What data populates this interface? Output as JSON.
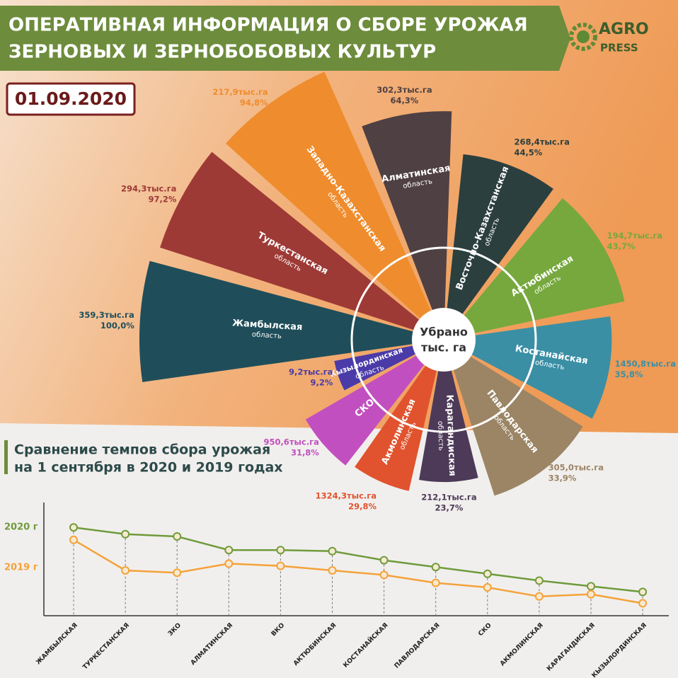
{
  "header": {
    "title_lines": [
      "ОПЕРАТИВНАЯ ИНФОРМАЦИЯ О СБОРЕ УРОЖАЯ",
      "ЗЕРНОВЫХ И ЗЕРНОБОБОВЫХ КУЛЬТУР"
    ],
    "logo": [
      "AGRO",
      "PRESS"
    ],
    "date": "01.09.2020"
  },
  "chart_data": [
    {
      "type": "polar-bar",
      "center_label": [
        "Убрано",
        "тыс. га"
      ],
      "categories": [
        "Жамбылская",
        "Туркестанская",
        "Западно-Казахстанская",
        "Алматинская",
        "Восточно-Казахстанская",
        "Актюбинская",
        "Костанайская",
        "Павлодарская",
        "Карагандиская",
        "Акмолинская",
        "СКО",
        "Кызылординская"
      ],
      "sublabels": [
        "область",
        "область",
        "область",
        "область",
        "область",
        "область",
        "область",
        "область",
        "область",
        "область",
        null,
        "область"
      ],
      "values": [
        100.0,
        97.2,
        94.8,
        64.3,
        44.5,
        43.7,
        35.8,
        33.9,
        23.7,
        29.8,
        31.8,
        9.2
      ],
      "value_labels": [
        "100,0%",
        "97,2%",
        "94,8%",
        "64,3%",
        "44,5%",
        "43,7%",
        "35,8%",
        "33,9%",
        "23,7%",
        "29,8%",
        "31,8%",
        "9,2%"
      ],
      "harvest_labels": [
        "359,3тыс.га",
        "294,3тыс.га",
        "217,9тыс.га",
        "302,3тыс.га",
        "268,4тыс.га",
        "194,7тыс.га",
        "1450,8тыс.га",
        "305,0тыс.га",
        "212,1тыс.га",
        "1324,3тыс.га",
        "950,6тыс.га",
        "9,2тыс.га"
      ],
      "colors": [
        "#1f4e5a",
        "#9e3a36",
        "#ef8c2d",
        "#4f4043",
        "#2c3f3f",
        "#76a83d",
        "#3a8fa5",
        "#9b8565",
        "#4d3a58",
        "#e0532e",
        "#c24fbf",
        "#4a3ba8"
      ],
      "ylim": [
        0,
        100
      ]
    },
    {
      "type": "line",
      "title_lines": [
        "Сравнение темпов сбора урожая",
        "на 1 сентября в 2020 и 2019 годах"
      ],
      "categories": [
        "ЖАМБЫЛСКАЯ",
        "ТУРКЕСТАНСКАЯ",
        "ЗКО",
        "АЛМАТИНСКАЯ",
        "ВКО",
        "АКТЮБИНСКАЯ",
        "КОСТАНАЙСКАЯ",
        "ПАВЛОДАРСКАЯ",
        "СКО",
        "АКМОЛИНСКАЯ",
        "КАРАГАНДИСКАЯ",
        "КЫЗЫЛОРДИНСКАЯ"
      ],
      "series": [
        {
          "name": "2020 г",
          "color": "#6f9b3c",
          "values": [
            78,
            72,
            70,
            58,
            58,
            57,
            49,
            43,
            37,
            31,
            26,
            21
          ]
        },
        {
          "name": "2019 г",
          "color": "#f4a23a",
          "values": [
            67,
            40,
            38,
            46,
            44,
            40,
            36,
            29,
            25,
            17,
            19,
            11
          ]
        }
      ],
      "ylim": [
        0,
        100
      ]
    }
  ]
}
